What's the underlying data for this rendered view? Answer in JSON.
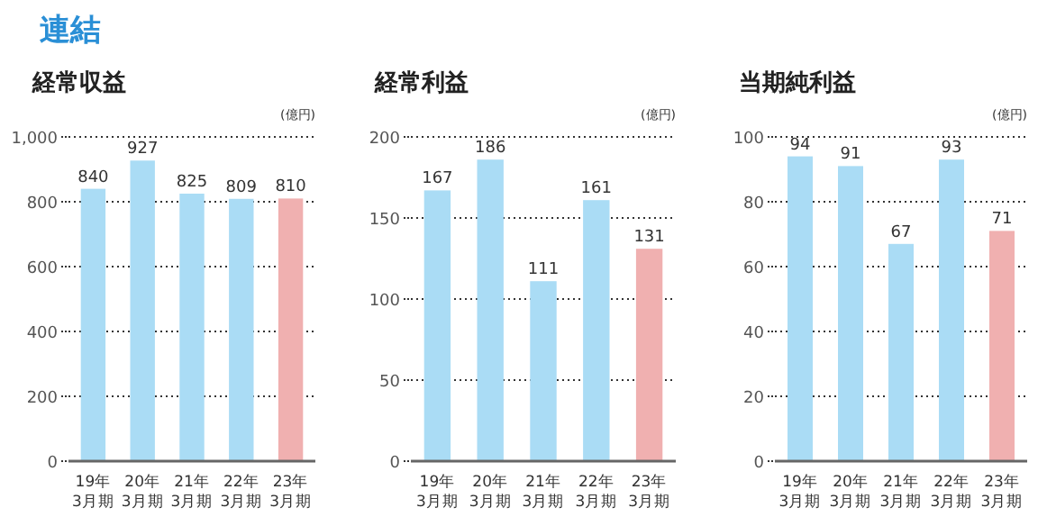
{
  "chart_data": [
    {
      "type": "other",
      "title": "連結"
    },
    {
      "type": "bar",
      "title": "経常収益",
      "ylabel": "(億円)",
      "categories": [
        "19年\n3月期",
        "20年\n3月期",
        "21年\n3月期",
        "22年\n3月期",
        "23年\n3月期"
      ],
      "values": [
        840,
        927,
        825,
        809,
        810
      ],
      "colors": [
        "#aadcf5",
        "#aadcf5",
        "#aadcf5",
        "#aadcf5",
        "#f0b0b0"
      ],
      "ylim": [
        0,
        1000
      ],
      "yticks": [
        0,
        200,
        400,
        600,
        800,
        {
          "value": 1000,
          "label": "1,000"
        }
      ],
      "grid": "y",
      "data_labels": true
    },
    {
      "type": "bar",
      "title": "経常利益",
      "ylabel": "(億円)",
      "categories": [
        "19年\n3月期",
        "20年\n3月期",
        "21年\n3月期",
        "22年\n3月期",
        "23年\n3月期"
      ],
      "values": [
        167,
        186,
        111,
        161,
        131
      ],
      "colors": [
        "#aadcf5",
        "#aadcf5",
        "#aadcf5",
        "#aadcf5",
        "#f0b0b0"
      ],
      "ylim": [
        0,
        200
      ],
      "yticks": [
        0,
        50,
        100,
        150,
        200
      ],
      "grid": "y",
      "data_labels": true
    },
    {
      "type": "bar",
      "title": "当期純利益",
      "ylabel": "(億円)",
      "categories": [
        "19年\n3月期",
        "20年\n3月期",
        "21年\n3月期",
        "22年\n3月期",
        "23年\n3月期"
      ],
      "values": [
        94,
        91,
        67,
        93,
        71
      ],
      "colors": [
        "#aadcf5",
        "#aadcf5",
        "#aadcf5",
        "#aadcf5",
        "#f0b0b0"
      ],
      "ylim": [
        0,
        100
      ],
      "yticks": [
        0,
        20,
        40,
        60,
        80,
        100
      ],
      "grid": "y",
      "data_labels": true
    }
  ]
}
